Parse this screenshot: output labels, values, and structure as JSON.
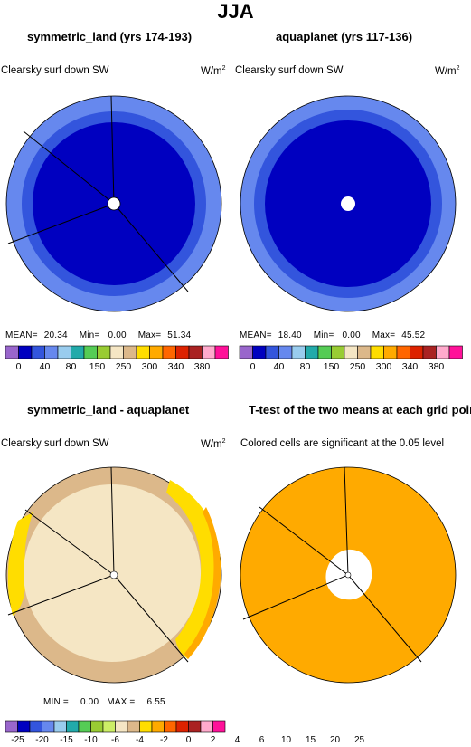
{
  "title": "JJA",
  "colors": {
    "abs_palette": [
      "#9966cc",
      "#0000c0",
      "#3355dd",
      "#6688ee",
      "#99ccee",
      "#22aaaa",
      "#55cc55",
      "#99cc33",
      "#f5e6c4",
      "#dcb88a",
      "#ffdd00",
      "#ffaa00",
      "#ff6600",
      "#dd2200",
      "#aa2222",
      "#ffaacc",
      "#ff1199"
    ],
    "diff_palette": [
      "#9966cc",
      "#0000c0",
      "#3355dd",
      "#6688ee",
      "#99ccee",
      "#22aaaa",
      "#55cc55",
      "#99cc33",
      "#ccee66",
      "#f5e6c4",
      "#dcb88a",
      "#ffdd00",
      "#ffaa00",
      "#ff6600",
      "#dd2200",
      "#aa2222",
      "#ffaacc",
      "#ff1199"
    ]
  },
  "panels": [
    {
      "title": "symmetric_land (yrs 174-193)",
      "left_label": "Clearsky surf down SW",
      "units_base": "W/m",
      "units_exp": "2",
      "stats": {
        "mean_label": "MEAN=",
        "mean": "20.34",
        "min_label": "Min=",
        "min": "0.00",
        "max_label": "Max=",
        "max": "51.34"
      },
      "colorbar_labels": [
        "0",
        "40",
        "80",
        "150",
        "250",
        "300",
        "340",
        "380"
      ]
    },
    {
      "title": "aquaplanet (yrs 117-136)",
      "left_label": "Clearsky surf down SW",
      "units_base": "W/m",
      "units_exp": "2",
      "stats": {
        "mean_label": "MEAN=",
        "mean": "18.40",
        "min_label": "Min=",
        "min": "0.00",
        "max_label": "Max=",
        "max": "45.52"
      },
      "colorbar_labels": [
        "0",
        "40",
        "80",
        "150",
        "250",
        "300",
        "340",
        "380"
      ]
    },
    {
      "title": "symmetric_land - aquaplanet",
      "left_label": "Clearsky surf down SW",
      "units_base": "W/m",
      "units_exp": "2",
      "stats": {
        "min_label": "MIN =",
        "min": "0.00",
        "max_label": "MAX =",
        "max": "6.55"
      },
      "colorbar_labels": [
        "-25",
        "-20",
        "-15",
        "-10",
        "-6",
        "-4",
        "-2",
        "0",
        "2",
        "4",
        "6",
        "10",
        "15",
        "20",
        "25"
      ]
    },
    {
      "title": "T-test of the two means at each grid point",
      "left_label": "Colored cells are significant at the 0.05 level"
    }
  ]
}
